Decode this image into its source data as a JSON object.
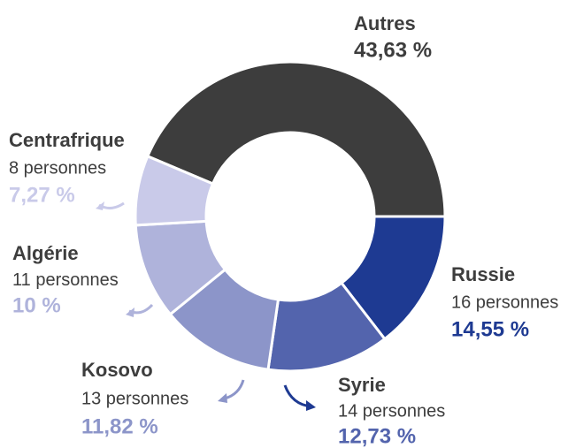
{
  "chart_data": {
    "type": "donut",
    "categories": [
      "Autres",
      "Russie",
      "Syrie",
      "Kosovo",
      "Algérie",
      "Centrafrique"
    ],
    "values": [
      43.63,
      14.55,
      12.73,
      11.82,
      10,
      7.27
    ],
    "value_labels": [
      "43,63 %",
      "14,55 %",
      "12,73 %",
      "11,82 %",
      "10 %",
      "7,27 %"
    ],
    "persons": [
      null,
      "16 personnes",
      "14 personnes",
      "13 personnes",
      "11 personnes",
      "8 personnes"
    ],
    "colors": [
      "#3d3d3d",
      "#1e3a92",
      "#5364ad",
      "#8c95c9",
      "#afb3db",
      "#c9cae9"
    ]
  }
}
